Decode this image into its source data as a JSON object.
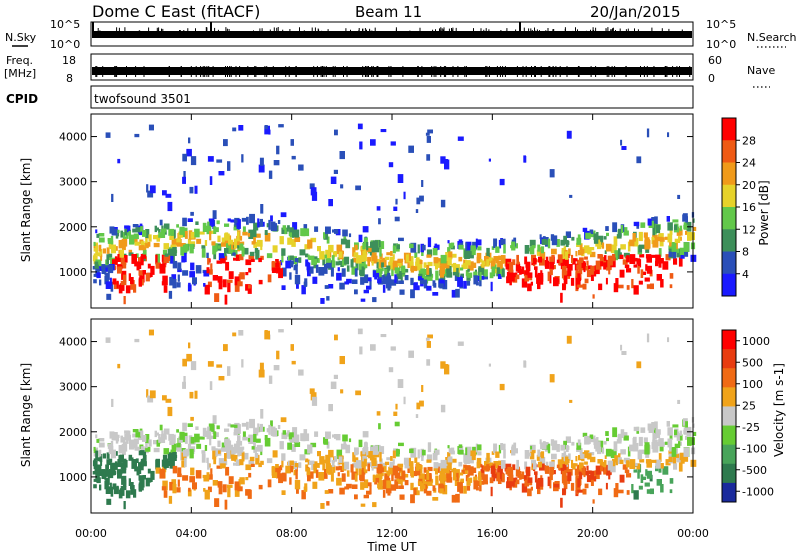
{
  "header": {
    "title": "Dome C East (fitACF)",
    "beam": "Beam 11",
    "date": "20/Jan/2015"
  },
  "status_panels": {
    "nsky": {
      "label": "N.Sky",
      "tick_top": "10^5",
      "tick_bottom": "10^0"
    },
    "nsearch": {
      "label": "N.Search",
      "tick_top": "10^5",
      "tick_bottom": "10^0"
    },
    "freq": {
      "label_line1": "Freq.",
      "label_line2": "[MHz]",
      "tick_top": "18",
      "tick_bottom": "8"
    },
    "nave": {
      "label": "Nave",
      "tick_top": "60",
      "tick_bottom": "0"
    },
    "cpid": {
      "label": "CPID",
      "program": "twofsound 3501"
    }
  },
  "chart_data": [
    {
      "type": "heatmap",
      "panel": "power",
      "ylabel": "Slant Range [km]",
      "yticks": [
        "1000",
        "2000",
        "3000",
        "4000"
      ],
      "ylim": [
        200,
        4500
      ],
      "xticks": [
        "00:00",
        "04:00",
        "08:00",
        "12:00",
        "16:00",
        "20:00",
        "00:00"
      ],
      "xlim_hours": [
        0,
        24
      ],
      "colorbar": {
        "label": "Power [dB]",
        "ticks": [
          "4",
          "8",
          "12",
          "16",
          "20",
          "24",
          "28"
        ],
        "colors": [
          "#1a1aff",
          "#2a4fb8",
          "#3d8f5a",
          "#62c84a",
          "#e6d22a",
          "#f09a1a",
          "#ef5a14",
          "#ff0000"
        ]
      }
    },
    {
      "type": "heatmap",
      "panel": "velocity",
      "ylabel": "Slant Range [km]",
      "yticks": [
        "1000",
        "2000",
        "3000",
        "4000"
      ],
      "ylim": [
        200,
        4500
      ],
      "xticks": [
        "00:00",
        "04:00",
        "08:00",
        "12:00",
        "16:00",
        "20:00",
        "00:00"
      ],
      "xlabel": "Time UT",
      "colorbar": {
        "label": "Velocity [m s-1]",
        "ticks": [
          "1000",
          "500",
          "100",
          "25",
          "-25",
          "-100",
          "-500",
          "-1000"
        ],
        "colors": [
          "#1a2a9c",
          "#2e7a4e",
          "#48a45a",
          "#66cc33",
          "#c8c8c8",
          "#f0a31a",
          "#f06a14",
          "#e83c10",
          "#ff0000"
        ]
      }
    }
  ]
}
